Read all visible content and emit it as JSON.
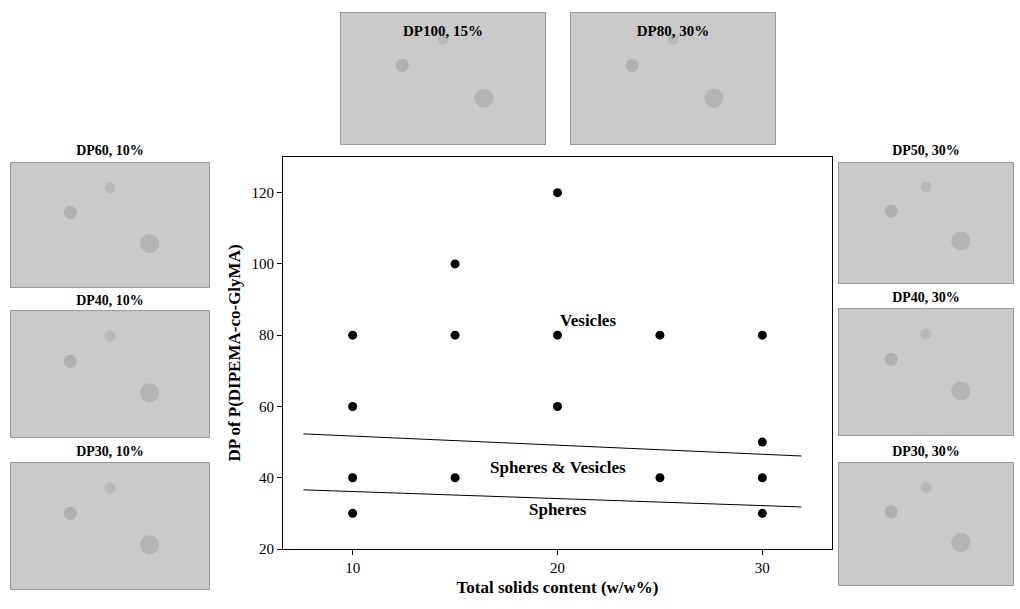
{
  "chart_data": {
    "type": "scatter",
    "x_label": "Total solids content (w/w%)",
    "y_label": "DP of P(DIPEMA-co-GlyMA)",
    "x": [
      10,
      10,
      10,
      10,
      15,
      15,
      15,
      20,
      20,
      20,
      25,
      25,
      30,
      30,
      30,
      30
    ],
    "values": [
      80,
      60,
      40,
      30,
      100,
      80,
      40,
      120,
      80,
      60,
      80,
      40,
      80,
      50,
      40,
      30
    ],
    "color": "#000000",
    "marker": "circle",
    "xlim": [
      6.6,
      33.4
    ],
    "xticks": [
      10,
      20,
      30
    ],
    "ylim": [
      20,
      130
    ],
    "yticks": [
      20,
      40,
      60,
      80,
      100,
      120
    ],
    "grid": false,
    "boundaries": [
      {
        "x": [
          7.6,
          31.9
        ],
        "y": [
          52.3,
          46.1
        ]
      },
      {
        "x": [
          7.6,
          31.9
        ],
        "y": [
          36.6,
          31.8
        ]
      }
    ],
    "annotations": [
      {
        "text": "Vesicles",
        "x": 21.5,
        "y": 84
      },
      {
        "text": "Spheres & Vesicles",
        "x": 20,
        "y": 43
      },
      {
        "text": "Spheres",
        "x": 20,
        "y": 31
      }
    ]
  },
  "micrographs": {
    "top": [
      "DP100, 15%",
      "DP80, 30%"
    ],
    "left": [
      "DP60, 10%",
      "DP40, 10%",
      "DP30, 10%"
    ],
    "right": [
      "DP50, 30%",
      "DP40, 30%",
      "DP30, 30%"
    ]
  }
}
